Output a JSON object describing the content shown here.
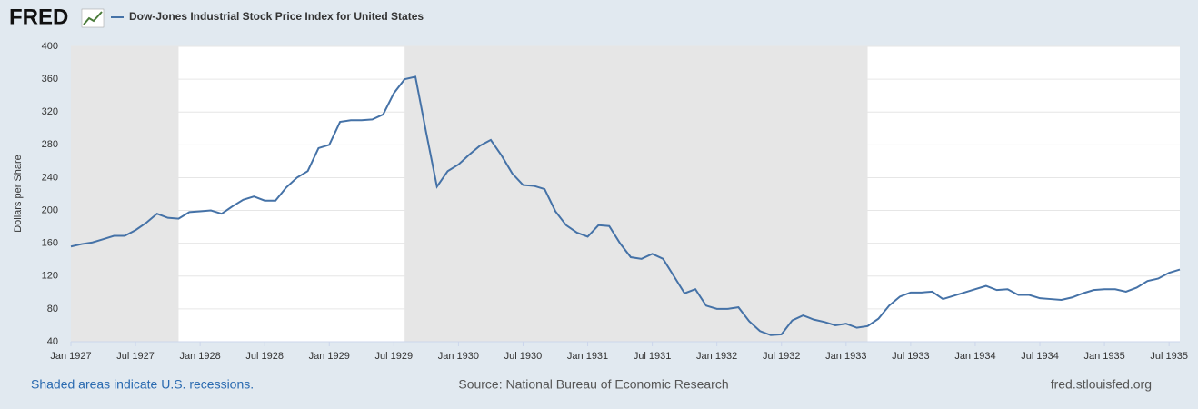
{
  "chart_data": {
    "type": "line",
    "logo": "FRED",
    "ylabel": "Dollars per Share",
    "note": "Shaded areas indicate U.S. recessions.",
    "source": "Source: National Bureau of Economic Research",
    "site": "fred.stlouisfed.org",
    "x": [
      "1927-01",
      "1927-02",
      "1927-03",
      "1927-04",
      "1927-05",
      "1927-06",
      "1927-07",
      "1927-08",
      "1927-09",
      "1927-10",
      "1927-11",
      "1927-12",
      "1928-01",
      "1928-02",
      "1928-03",
      "1928-04",
      "1928-05",
      "1928-06",
      "1928-07",
      "1928-08",
      "1928-09",
      "1928-10",
      "1928-11",
      "1928-12",
      "1929-01",
      "1929-02",
      "1929-03",
      "1929-04",
      "1929-05",
      "1929-06",
      "1929-07",
      "1929-08",
      "1929-09",
      "1929-10",
      "1929-11",
      "1929-12",
      "1930-01",
      "1930-02",
      "1930-03",
      "1930-04",
      "1930-05",
      "1930-06",
      "1930-07",
      "1930-08",
      "1930-09",
      "1930-10",
      "1930-11",
      "1930-12",
      "1931-01",
      "1931-02",
      "1931-03",
      "1931-04",
      "1931-05",
      "1931-06",
      "1931-07",
      "1931-08",
      "1931-09",
      "1931-10",
      "1931-11",
      "1931-12",
      "1932-01",
      "1932-02",
      "1932-03",
      "1932-04",
      "1932-05",
      "1932-06",
      "1932-07",
      "1932-08",
      "1932-09",
      "1932-10",
      "1932-11",
      "1932-12",
      "1933-01",
      "1933-02",
      "1933-03",
      "1933-04",
      "1933-05",
      "1933-06",
      "1933-07",
      "1933-08",
      "1933-09",
      "1933-10",
      "1933-11",
      "1933-12",
      "1934-01",
      "1934-02",
      "1934-03",
      "1934-04",
      "1934-05",
      "1934-06",
      "1934-07",
      "1934-08",
      "1934-09",
      "1934-10",
      "1934-11",
      "1934-12",
      "1935-01",
      "1935-02",
      "1935-03",
      "1935-04",
      "1935-05",
      "1935-06",
      "1935-07",
      "1935-08"
    ],
    "series": [
      {
        "name": "Dow-Jones Industrial Stock Price Index for United States",
        "color": "#4572a7",
        "values": [
          156,
          159,
          161,
          165,
          169,
          169,
          176,
          185,
          196,
          191,
          190,
          198,
          199,
          200,
          196,
          205,
          213,
          217,
          212,
          212,
          228,
          240,
          248,
          276,
          280,
          308,
          310,
          310,
          311,
          317,
          343,
          360,
          363,
          295,
          229,
          248,
          256,
          268,
          279,
          286,
          267,
          245,
          231,
          230,
          226,
          199,
          182,
          173,
          168,
          182,
          181,
          160,
          143,
          141,
          147,
          141,
          120,
          99,
          104,
          84,
          80,
          80,
          82,
          65,
          53,
          48,
          49,
          66,
          72,
          67,
          64,
          60,
          62,
          57,
          59,
          68,
          84,
          95,
          100,
          100,
          101,
          92,
          96,
          100,
          104,
          108,
          103,
          104,
          97,
          97,
          93,
          92,
          91,
          94,
          99,
          103,
          104,
          104,
          101,
          106,
          114,
          117,
          124,
          128
        ]
      }
    ],
    "recessions": [
      [
        "1927-01",
        "1927-11"
      ],
      [
        "1929-08",
        "1933-03"
      ]
    ],
    "xlim": [
      "1927-01",
      "1935-08"
    ],
    "xticks": [
      {
        "value": "1927-01",
        "label": "Jan 1927"
      },
      {
        "value": "1927-07",
        "label": "Jul 1927"
      },
      {
        "value": "1928-01",
        "label": "Jan 1928"
      },
      {
        "value": "1928-07",
        "label": "Jul 1928"
      },
      {
        "value": "1929-01",
        "label": "Jan 1929"
      },
      {
        "value": "1929-07",
        "label": "Jul 1929"
      },
      {
        "value": "1930-01",
        "label": "Jan 1930"
      },
      {
        "value": "1930-07",
        "label": "Jul 1930"
      },
      {
        "value": "1931-01",
        "label": "Jan 1931"
      },
      {
        "value": "1931-07",
        "label": "Jul 1931"
      },
      {
        "value": "1932-01",
        "label": "Jan 1932"
      },
      {
        "value": "1932-07",
        "label": "Jul 1932"
      },
      {
        "value": "1933-01",
        "label": "Jan 1933"
      },
      {
        "value": "1933-07",
        "label": "Jul 1933"
      },
      {
        "value": "1934-01",
        "label": "Jan 1934"
      },
      {
        "value": "1934-07",
        "label": "Jul 1934"
      },
      {
        "value": "1935-01",
        "label": "Jan 1935"
      },
      {
        "value": "1935-07",
        "label": "Jul 1935"
      }
    ],
    "ylim": [
      40,
      400
    ],
    "yticks": [
      40,
      80,
      120,
      160,
      200,
      240,
      280,
      320,
      360,
      400
    ],
    "grid": true
  }
}
